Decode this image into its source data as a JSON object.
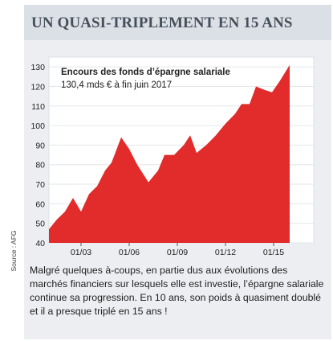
{
  "header": {
    "title": "UN QUASI-TRIPLEMENT EN 15 ANS"
  },
  "source": "Source : AFG",
  "caption": "Malgré quelques à-coups, en partie dus aux évolutions des marchés financiers sur lesquels elle est investie, l’épargne salariale continue sa progression. En 10 ans, son poids à quasiment doublé et il a presque triplé en 15 ans !",
  "colors": {
    "area": "#e22b2b",
    "panel": "#eceef1",
    "header": "#dbe0e6",
    "title": "#46505a",
    "grid": "#ffffff"
  },
  "chart_data": {
    "type": "area",
    "title": "Encours des fonds d’épargne salariale",
    "subtitle": "130,4 mds € à fin juin 2017",
    "xlabel": "",
    "ylabel": "",
    "ylim": [
      40,
      135
    ],
    "xlim": [
      2001.0,
      2017.5
    ],
    "grid": true,
    "y_ticks": [
      "130",
      "120",
      "110",
      "100",
      "90",
      "80",
      "70",
      "60",
      "50",
      "40"
    ],
    "x_ticks": [
      "01/03",
      "01/06",
      "01/09",
      "01/12",
      "01/15"
    ],
    "series": [
      {
        "values": [
          [
            2001.0,
            47
          ],
          [
            2001.5,
            52
          ],
          [
            2002.0,
            56
          ],
          [
            2002.5,
            63
          ],
          [
            2003.0,
            56
          ],
          [
            2003.5,
            65
          ],
          [
            2004.0,
            69
          ],
          [
            2004.5,
            77
          ],
          [
            2004.9,
            81
          ],
          [
            2005.5,
            94
          ],
          [
            2006.0,
            88
          ],
          [
            2006.5,
            80
          ],
          [
            2007.2,
            71
          ],
          [
            2007.8,
            77
          ],
          [
            2008.2,
            85
          ],
          [
            2008.8,
            85
          ],
          [
            2009.4,
            90
          ],
          [
            2009.8,
            95
          ],
          [
            2010.2,
            86
          ],
          [
            2010.8,
            90
          ],
          [
            2011.4,
            95
          ],
          [
            2012.0,
            101
          ],
          [
            2012.6,
            106
          ],
          [
            2013.0,
            111
          ],
          [
            2013.5,
            111
          ],
          [
            2013.9,
            120
          ],
          [
            2014.5,
            118
          ],
          [
            2014.9,
            117
          ],
          [
            2015.4,
            123
          ],
          [
            2016.0,
            131
          ]
        ]
      }
    ]
  }
}
